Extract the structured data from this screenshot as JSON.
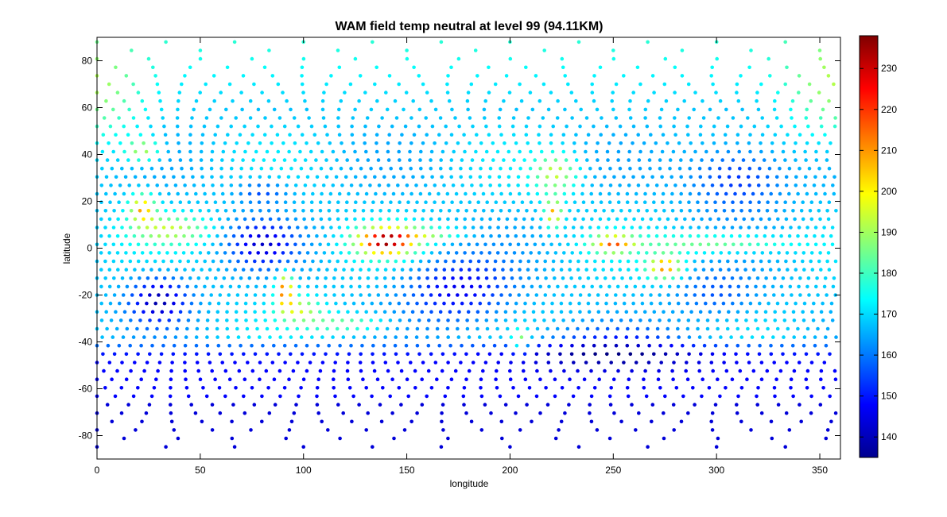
{
  "chart_data": {
    "type": "scatter",
    "title": "WAM field temp neutral at level 99 (94.11KM)",
    "xlabel": "longitude",
    "ylabel": "latitude",
    "xlim": [
      0,
      360
    ],
    "ylim": [
      -90,
      90
    ],
    "xticks": [
      0,
      50,
      100,
      150,
      200,
      250,
      300,
      350
    ],
    "yticks": [
      -80,
      -60,
      -40,
      -20,
      0,
      20,
      40,
      60,
      80
    ],
    "grid": false,
    "colormap": "jet",
    "colorbar": {
      "range": [
        135,
        238
      ],
      "ticks": [
        140,
        150,
        160,
        170,
        180,
        190,
        200,
        210,
        220,
        230
      ]
    },
    "grid_spacing_deg": {
      "lon": 4.0,
      "lat": 3.6
    },
    "field": {
      "background": 168,
      "features": [
        {
          "lon": 140,
          "lat": 3,
          "rlon": 14,
          "rlat": 6,
          "delta": 66
        },
        {
          "lon": 22,
          "lat": 17,
          "rlon": 6,
          "rlat": 6,
          "delta": 40
        },
        {
          "lon": 35,
          "lat": 8,
          "rlon": 18,
          "rlat": 6,
          "delta": 24
        },
        {
          "lon": 22,
          "lat": 42,
          "rlon": 8,
          "rlat": 5,
          "delta": 26
        },
        {
          "lon": 91,
          "lat": -18,
          "rlon": 4,
          "rlat": 7,
          "delta": 50
        },
        {
          "lon": 98,
          "lat": -26,
          "rlon": 10,
          "rlat": 5,
          "delta": 26
        },
        {
          "lon": 120,
          "lat": -32,
          "rlon": 20,
          "rlat": 4,
          "delta": 18
        },
        {
          "lon": 221,
          "lat": 15,
          "rlon": 4,
          "rlat": 6,
          "delta": 40
        },
        {
          "lon": 222,
          "lat": 32,
          "rlon": 10,
          "rlat": 8,
          "delta": 26
        },
        {
          "lon": 250,
          "lat": 2,
          "rlon": 10,
          "rlat": 4,
          "delta": 44
        },
        {
          "lon": 275,
          "lat": -8,
          "rlon": 8,
          "rlat": 5,
          "delta": 44
        },
        {
          "lon": 300,
          "lat": 2,
          "rlon": 35,
          "rlat": 4,
          "delta": 20
        },
        {
          "lon": 160,
          "lat": 6,
          "rlon": 16,
          "rlat": 3,
          "delta": 18
        },
        {
          "lon": 205,
          "lat": -40,
          "rlon": 4,
          "rlat": 5,
          "delta": 24
        },
        {
          "lon": 30,
          "lat": -22,
          "rlon": 14,
          "rlat": 10,
          "delta": -28
        },
        {
          "lon": 80,
          "lat": 2,
          "rlon": 16,
          "rlat": 10,
          "delta": -22
        },
        {
          "lon": 80,
          "lat": 24,
          "rlon": 12,
          "rlat": 5,
          "delta": -14
        },
        {
          "lon": 175,
          "lat": -18,
          "rlon": 25,
          "rlat": 14,
          "delta": -22
        },
        {
          "lon": 250,
          "lat": -42,
          "rlon": 40,
          "rlat": 8,
          "delta": -18
        },
        {
          "lon": 310,
          "lat": 30,
          "rlon": 22,
          "rlat": 14,
          "delta": -18
        },
        {
          "lon": 300,
          "lat": -20,
          "rlon": 20,
          "rlat": 10,
          "delta": -12
        },
        {
          "lon": 5,
          "lat": 65,
          "rlon": 20,
          "rlat": 20,
          "delta": 12
        },
        {
          "lon": 350,
          "lat": 70,
          "rlon": 20,
          "rlat": 20,
          "delta": 12
        }
      ]
    }
  }
}
